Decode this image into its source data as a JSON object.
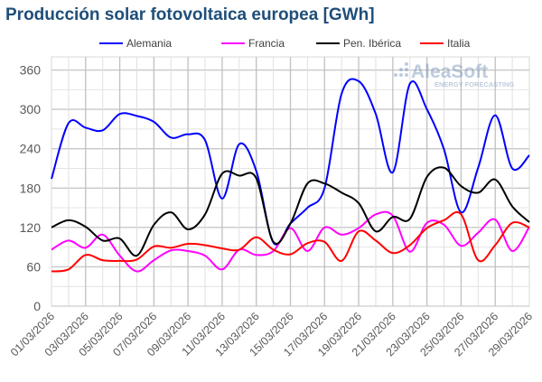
{
  "chart_data": {
    "type": "line",
    "title": "Producción solar fotovoltaica europea [GWh]",
    "watermark": {
      "brand": "AleaSoft",
      "tagline": "ENERGY FORECASTING"
    },
    "xlabel": "",
    "ylabel": "",
    "ylim": [
      0,
      380
    ],
    "yticks": [
      0,
      60,
      120,
      180,
      240,
      300,
      360
    ],
    "grid": true,
    "legend_position": "top",
    "x": [
      "01/03/2026",
      "02/03/2026",
      "03/03/2026",
      "04/03/2026",
      "05/03/2026",
      "06/03/2026",
      "07/03/2026",
      "08/03/2026",
      "09/03/2026",
      "10/03/2026",
      "11/03/2026",
      "12/03/2026",
      "13/03/2026",
      "14/03/2026",
      "15/03/2026",
      "16/03/2026",
      "17/03/2026",
      "18/03/2026",
      "19/03/2026",
      "20/03/2026",
      "21/03/2026",
      "22/03/2026",
      "23/03/2026",
      "24/03/2026",
      "25/03/2026",
      "26/03/2026",
      "27/03/2026",
      "28/03/2026",
      "29/03/2026"
    ],
    "xtick_labels": [
      "01/03/2026",
      "03/03/2026",
      "05/03/2026",
      "07/03/2026",
      "09/03/2026",
      "11/03/2026",
      "13/03/2026",
      "15/03/2026",
      "17/03/2026",
      "19/03/2026",
      "21/03/2026",
      "23/03/2026",
      "25/03/2026",
      "27/03/2026",
      "29/03/2026"
    ],
    "series": [
      {
        "name": "Alemania",
        "color": "#0000ff",
        "values": [
          194,
          279,
          272,
          268,
          293,
          290,
          281,
          257,
          262,
          253,
          164,
          247,
          206,
          97,
          126,
          150,
          180,
          324,
          343,
          293,
          204,
          339,
          300,
          239,
          143,
          211,
          291,
          210,
          230
        ]
      },
      {
        "name": "Francia",
        "color": "#ff00ff",
        "values": [
          86,
          100,
          89,
          109,
          77,
          53,
          70,
          85,
          84,
          77,
          56,
          86,
          78,
          84,
          119,
          84,
          120,
          109,
          119,
          140,
          138,
          83,
          127,
          124,
          92,
          112,
          132,
          84,
          121
        ]
      },
      {
        "name": "Pen. Ibérica",
        "color": "#000000",
        "values": [
          120,
          131,
          121,
          100,
          103,
          77,
          124,
          143,
          117,
          140,
          202,
          199,
          195,
          98,
          126,
          187,
          187,
          173,
          157,
          114,
          136,
          133,
          197,
          211,
          183,
          173,
          193,
          152,
          128
        ]
      },
      {
        "name": "Italia",
        "color": "#ff0000",
        "values": [
          53,
          56,
          78,
          70,
          69,
          71,
          91,
          89,
          95,
          93,
          88,
          86,
          105,
          86,
          79,
          96,
          98,
          69,
          114,
          100,
          81,
          93,
          119,
          131,
          140,
          70,
          93,
          127,
          120
        ]
      }
    ]
  }
}
